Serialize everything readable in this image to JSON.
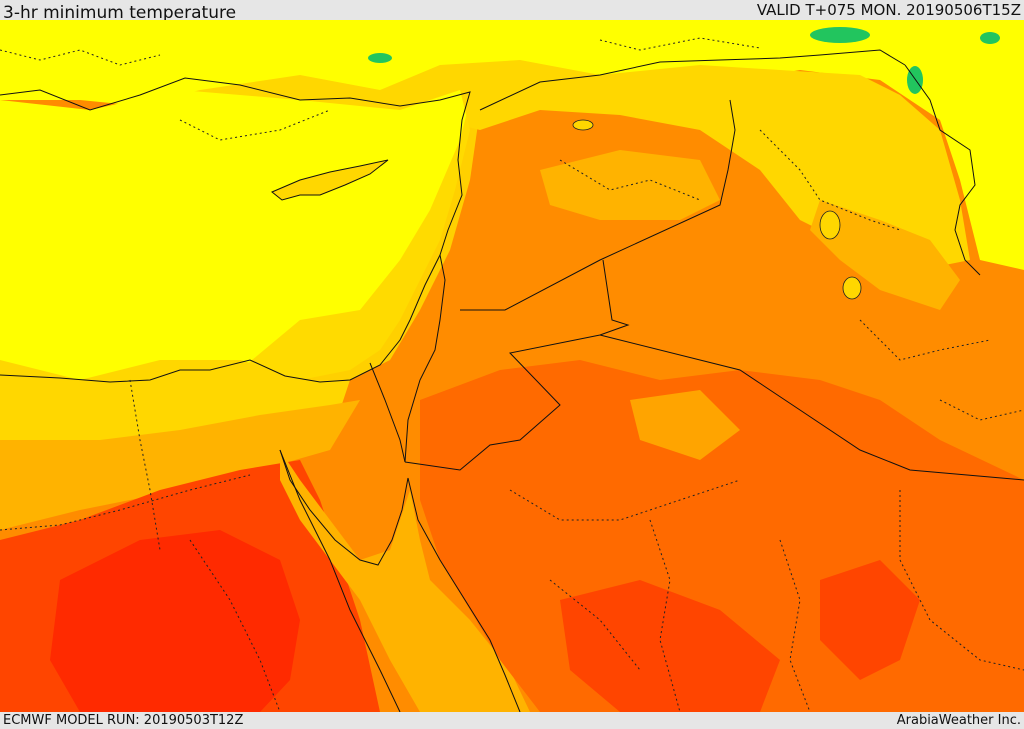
{
  "header": {
    "title": "3-hr minimum temperature",
    "valid": "VALID T+075 MON. 20190506T15Z"
  },
  "footer": {
    "model_run": "ECMWF MODEL RUN: 20190503T12Z",
    "credit": "ArabiaWeather Inc."
  },
  "map": {
    "field": "3-hr minimum temperature",
    "region": "Eastern Mediterranean / Levant / Northern Arabia",
    "palette": {
      "green": "#22c55e",
      "light_yellow": "#ffff00",
      "yellow": "#ffd700",
      "amber": "#ffb300",
      "orange": "#ff8c00",
      "dark_orange": "#ff6a00",
      "red_orange": "#ff4500",
      "red": "#ff2a00"
    }
  }
}
